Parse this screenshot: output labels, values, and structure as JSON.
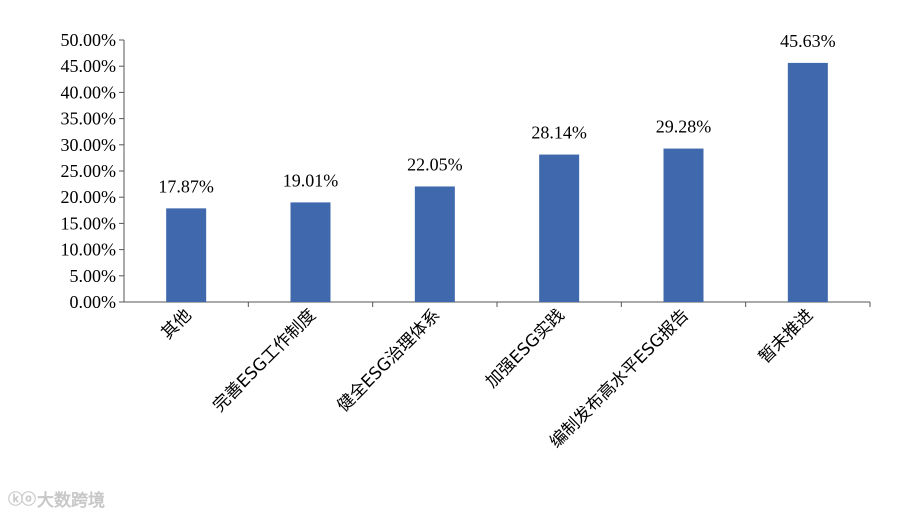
{
  "chart_data": {
    "type": "bar",
    "categories": [
      "其他",
      "完善ESG工作制度",
      "健全ESG治理体系",
      "加强ESG实践",
      "编制发布高水平ESG报告",
      "暂未推进"
    ],
    "values": [
      17.87,
      19.01,
      22.05,
      28.14,
      29.28,
      45.63
    ],
    "data_labels": [
      "17.87%",
      "19.01%",
      "22.05%",
      "28.14%",
      "29.28%",
      "45.63%"
    ],
    "yticks": [
      "0.00%",
      "5.00%",
      "10.00%",
      "15.00%",
      "20.00%",
      "25.00%",
      "30.00%",
      "35.00%",
      "40.00%",
      "45.00%",
      "50.00%"
    ],
    "ylim": [
      0,
      50
    ],
    "bar_color": "#4068ad",
    "grid": false,
    "legend": "none",
    "title": "",
    "xlabel": "",
    "ylabel": ""
  },
  "watermark": {
    "icon": "ⓚⓞ",
    "text": "大数跨境"
  }
}
